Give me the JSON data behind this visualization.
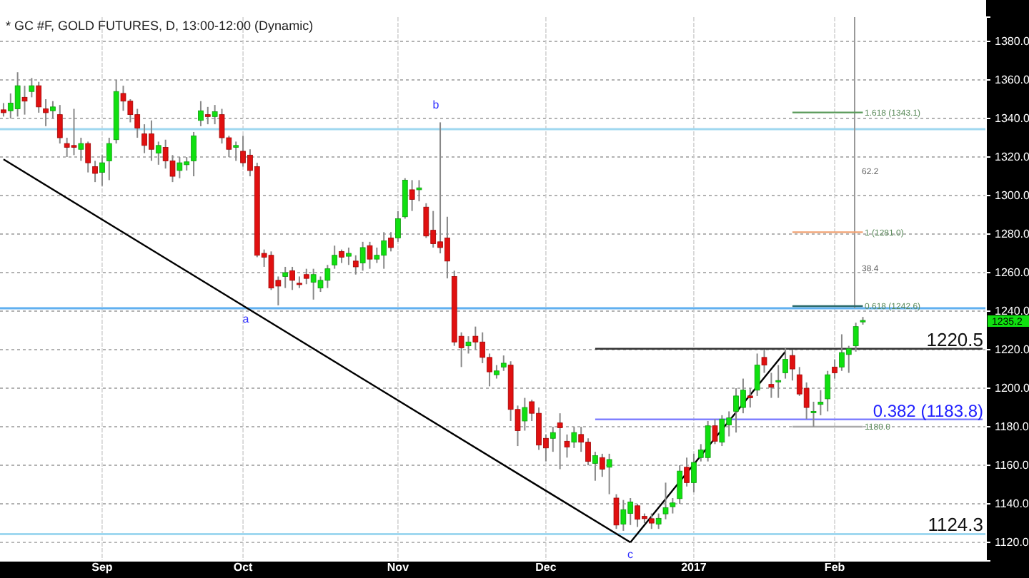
{
  "chart_data": {
    "type": "candlestick",
    "title": "* GC #F, GOLD FUTURES, D, 13:00-12:00 (Dynamic)",
    "categories": [
      null,
      null,
      null,
      null,
      null,
      null,
      null,
      null,
      null,
      null,
      null,
      null,
      null,
      null,
      "Sep",
      null,
      null,
      null,
      null,
      null,
      null,
      null,
      null,
      null,
      null,
      null,
      null,
      null,
      null,
      null,
      null,
      null,
      null,
      null,
      "Oct",
      null,
      null,
      null,
      null,
      null,
      null,
      null,
      null,
      null,
      null,
      null,
      null,
      null,
      null,
      null,
      null,
      null,
      null,
      null,
      null,
      null,
      "Nov",
      null,
      null,
      null,
      null,
      null,
      null,
      null,
      null,
      null,
      null,
      null,
      null,
      null,
      null,
      null,
      null,
      null,
      null,
      null,
      null,
      "Dec",
      null,
      null,
      null,
      null,
      null,
      null,
      null,
      null,
      null,
      null,
      null,
      null,
      null,
      null,
      null,
      null,
      null,
      null,
      null,
      null,
      "2017",
      null,
      null,
      null,
      null,
      null,
      null,
      null,
      null,
      null,
      null,
      null,
      null,
      null,
      null,
      null,
      null,
      null,
      null,
      null,
      "Feb",
      null,
      null,
      null,
      null,
      null,
      null,
      null,
      null,
      null,
      null,
      null,
      null,
      null,
      null,
      null,
      null,
      null,
      null,
      null,
      null,
      null
    ],
    "ohlc": [
      [
        1344.5,
        1348,
        1341,
        1343
      ],
      [
        1344,
        1353,
        1340,
        1348
      ],
      [
        1345,
        1364,
        1341,
        1357
      ],
      [
        1351,
        1357,
        1342,
        1349
      ],
      [
        1354,
        1361,
        1351,
        1357
      ],
      [
        1357,
        1359,
        1343,
        1346
      ],
      [
        1345,
        1350,
        1336,
        1343
      ],
      [
        1344,
        1349,
        1340,
        1346
      ],
      [
        1342,
        1347,
        1327,
        1330
      ],
      [
        1327,
        1330,
        1320,
        1325
      ],
      [
        1326,
        1345,
        1321,
        1325
      ],
      [
        1324,
        1330,
        1318,
        1327
      ],
      [
        1327,
        1328,
        1312,
        1317
      ],
      [
        1315,
        1318,
        1307,
        1311.5
      ],
      [
        1312,
        1321,
        1305,
        1317
      ],
      [
        1318,
        1330,
        1308,
        1327
      ],
      [
        1329,
        1360,
        1327,
        1354
      ],
      [
        1353,
        1357,
        1344,
        1349
      ],
      [
        1349,
        1350,
        1338,
        1342
      ],
      [
        1342,
        1345,
        1330,
        1335
      ],
      [
        1332,
        1337,
        1322,
        1326
      ],
      [
        1332,
        1339,
        1318,
        1324
      ],
      [
        1322,
        1328,
        1316,
        1326
      ],
      [
        1325,
        1329,
        1314,
        1318
      ],
      [
        1318,
        1321,
        1307,
        1310
      ],
      [
        1313,
        1320,
        1309,
        1317
      ],
      [
        1316,
        1320,
        1313,
        1317.5
      ],
      [
        1318,
        1333,
        1310,
        1331
      ],
      [
        1339,
        1349,
        1336,
        1344
      ],
      [
        1342,
        1346,
        1337,
        1341
      ],
      [
        1341,
        1347,
        1337,
        1343.5
      ],
      [
        1342,
        1345,
        1327,
        1330
      ],
      [
        1330,
        1331,
        1320,
        1324
      ],
      [
        1325,
        1328,
        1318,
        1326
      ],
      [
        1323,
        1331,
        1315,
        1317
      ],
      [
        1321,
        1324,
        1310,
        1313
      ],
      [
        1315,
        1317,
        1268,
        1269
      ],
      [
        1270,
        1272,
        1263,
        1268
      ],
      [
        1269,
        1271,
        1251,
        1252
      ],
      [
        1256,
        1258,
        1243,
        1253
      ],
      [
        1258,
        1263,
        1252,
        1260
      ],
      [
        1261,
        1263,
        1251,
        1256
      ],
      [
        1254.5,
        1258,
        1252,
        1254
      ],
      [
        1259,
        1262,
        1254,
        1257
      ],
      [
        1255,
        1262,
        1246,
        1259
      ],
      [
        1252,
        1258,
        1250,
        1256
      ],
      [
        1256,
        1264,
        1252,
        1262
      ],
      [
        1264,
        1274,
        1262,
        1269
      ],
      [
        1271,
        1272,
        1265,
        1268
      ],
      [
        1268.5,
        1273,
        1264,
        1270
      ],
      [
        1266,
        1269,
        1259,
        1263
      ],
      [
        1265,
        1276,
        1261,
        1273
      ],
      [
        1274,
        1276,
        1262,
        1267
      ],
      [
        1267,
        1273,
        1265,
        1269
      ],
      [
        1269,
        1281,
        1262,
        1276.5
      ],
      [
        1278,
        1281,
        1271,
        1273
      ],
      [
        1278,
        1292,
        1276,
        1288
      ],
      [
        1289,
        1309,
        1288,
        1308
      ],
      [
        1303,
        1308,
        1292,
        1298
      ],
      [
        1303,
        1308,
        1297,
        1304
      ],
      [
        1294,
        1296,
        1278,
        1279
      ],
      [
        1282,
        1292,
        1273,
        1275
      ],
      [
        1276,
        1338,
        1270,
        1273
      ],
      [
        1278,
        1289,
        1257,
        1266
      ],
      [
        1258,
        1261,
        1222,
        1224
      ],
      [
        1227,
        1229,
        1211,
        1221
      ],
      [
        1222,
        1227,
        1218,
        1224
      ],
      [
        1227,
        1232,
        1220,
        1224
      ],
      [
        1224,
        1229,
        1213,
        1216
      ],
      [
        1216,
        1218,
        1201,
        1208.5
      ],
      [
        1207,
        1212,
        1205,
        1209
      ],
      [
        1211,
        1217,
        1209,
        1213
      ],
      [
        1212,
        1214,
        1183,
        1189
      ],
      [
        1189,
        1191,
        1170,
        1178
      ],
      [
        1183,
        1195,
        1178,
        1190
      ],
      [
        1193,
        1194,
        1183,
        1187
      ],
      [
        1187,
        1190,
        1168,
        1170.5
      ],
      [
        1174,
        1176,
        1162,
        1169
      ],
      [
        1174,
        1180,
        1167,
        1177
      ],
      [
        1182,
        1187,
        1158,
        1179.5
      ],
      [
        1172.5,
        1176,
        1164,
        1169.5
      ],
      [
        1172,
        1180,
        1169,
        1177
      ],
      [
        1176,
        1180,
        1167,
        1172
      ],
      [
        1172,
        1174,
        1160,
        1162
      ],
      [
        1161,
        1167,
        1152,
        1165
      ],
      [
        1164,
        1166,
        1154,
        1158
      ],
      [
        1159,
        1166,
        1145,
        1163
      ],
      [
        1143,
        1145,
        1127,
        1129
      ],
      [
        1129.5,
        1142,
        1126,
        1137
      ],
      [
        1135,
        1143,
        1129,
        1141
      ],
      [
        1139,
        1140,
        1128,
        1132
      ],
      [
        1133.5,
        1135,
        1130,
        1132.3
      ],
      [
        1132.3,
        1135,
        1127,
        1130
      ],
      [
        1129.5,
        1135,
        1127,
        1132.5
      ],
      [
        1134.8,
        1151,
        1132,
        1138
      ],
      [
        1138.5,
        1143,
        1135,
        1140.5
      ],
      [
        1142.7,
        1160,
        1140,
        1157
      ],
      [
        1159,
        1164,
        1149,
        1151
      ],
      [
        1151,
        1166,
        1146,
        1161.5
      ],
      [
        1164,
        1171,
        1162,
        1168
      ],
      [
        1164,
        1183,
        1162,
        1180.5
      ],
      [
        1180.5,
        1184,
        1171,
        1172.5
      ],
      [
        1172,
        1186,
        1170,
        1184
      ],
      [
        1181,
        1188,
        1175,
        1184.6
      ],
      [
        1188,
        1200,
        1177,
        1196
      ],
      [
        1190,
        1205,
        1187,
        1199
      ],
      [
        1196,
        1200,
        1190,
        1195
      ],
      [
        1199,
        1218,
        1196,
        1212
      ],
      [
        1216,
        1220,
        1208,
        1212
      ],
      [
        1202,
        1208,
        1195,
        1200.5
      ],
      [
        1204,
        1212,
        1195,
        1204
      ],
      [
        1208,
        1221,
        1205,
        1215
      ],
      [
        1217,
        1220,
        1204,
        1210
      ],
      [
        1207,
        1211,
        1196,
        1197
      ],
      [
        1200,
        1203,
        1184,
        1190
      ],
      [
        1188,
        1193,
        1180,
        1188
      ],
      [
        1191.6,
        1199,
        1186,
        1192.8
      ],
      [
        1194.5,
        1209,
        1188,
        1207
      ],
      [
        1211,
        1215,
        1205,
        1208
      ],
      [
        1211,
        1228,
        1209,
        1218.5
      ],
      [
        1217.5,
        1222,
        1208,
        1220.5
      ],
      [
        1222,
        1234,
        1219,
        1232
      ],
      [
        1234.4,
        1237,
        1233,
        1235.2
      ],
      null,
      null,
      null,
      null,
      null,
      null,
      null,
      null,
      null,
      null,
      null,
      null,
      null,
      null,
      null,
      null,
      null
    ],
    "series": [
      {
        "type": "line",
        "color": "#000000",
        "values": [
          1318.8,
          null,
          null,
          null,
          null,
          null,
          null,
          null,
          null,
          null,
          null,
          null,
          null,
          null,
          null,
          null,
          null,
          null,
          null,
          null,
          null,
          null,
          null,
          null,
          null,
          null,
          null,
          null,
          null,
          null,
          null,
          null,
          null,
          null,
          null,
          null,
          null,
          null,
          null,
          null,
          null,
          null,
          null,
          null,
          null,
          null,
          null,
          null,
          null,
          null,
          null,
          null,
          null,
          null,
          null,
          null,
          null,
          null,
          null,
          null,
          null,
          null,
          null,
          null,
          null,
          null,
          null,
          null,
          null,
          null,
          null,
          null,
          null,
          null,
          null,
          null,
          null,
          null,
          null,
          null,
          null,
          null,
          null,
          null,
          null,
          null,
          null,
          null,
          null,
          1120,
          null,
          null,
          null,
          null,
          null,
          null,
          null,
          null,
          null,
          null,
          null,
          null,
          null,
          null,
          null,
          null,
          null,
          null,
          null,
          null,
          null,
          null,
          null,
          null,
          null,
          null,
          null,
          null,
          null,
          null,
          null,
          null,
          null,
          null,
          null,
          null,
          null,
          null,
          null,
          null,
          null,
          null,
          null,
          null,
          null,
          null,
          null,
          null,
          null,
          null
        ]
      },
      {
        "type": "line",
        "color": "#000000",
        "values": [
          null,
          null,
          null,
          null,
          null,
          null,
          null,
          null,
          null,
          null,
          null,
          null,
          null,
          null,
          null,
          null,
          null,
          null,
          null,
          null,
          null,
          null,
          null,
          null,
          null,
          null,
          null,
          null,
          null,
          null,
          null,
          null,
          null,
          null,
          null,
          null,
          null,
          null,
          null,
          null,
          null,
          null,
          null,
          null,
          null,
          null,
          null,
          null,
          null,
          null,
          null,
          null,
          null,
          null,
          null,
          null,
          null,
          null,
          null,
          null,
          null,
          null,
          null,
          null,
          null,
          null,
          null,
          null,
          null,
          null,
          null,
          null,
          null,
          null,
          null,
          null,
          null,
          null,
          null,
          null,
          null,
          null,
          null,
          null,
          null,
          null,
          null,
          null,
          null,
          1120,
          null,
          null,
          null,
          null,
          null,
          null,
          null,
          null,
          null,
          null,
          null,
          null,
          null,
          null,
          null,
          null,
          null,
          null,
          null,
          null,
          null,
          1219,
          null,
          null,
          null,
          null,
          null,
          null,
          null,
          null,
          null,
          null,
          null,
          null,
          null,
          null,
          null,
          null,
          null,
          null,
          null,
          null,
          null,
          null,
          null,
          null,
          null,
          null,
          null,
          null
        ]
      },
      {
        "type": "line",
        "color": "#5a9a5a",
        "values": [
          null,
          null,
          null,
          null,
          null,
          null,
          null,
          null,
          null,
          null,
          null,
          null,
          null,
          null,
          null,
          null,
          null,
          null,
          null,
          null,
          null,
          null,
          null,
          null,
          null,
          null,
          null,
          null,
          null,
          null,
          null,
          null,
          null,
          null,
          null,
          null,
          null,
          null,
          null,
          null,
          null,
          null,
          null,
          null,
          null,
          null,
          null,
          null,
          null,
          null,
          null,
          null,
          null,
          null,
          null,
          null,
          null,
          null,
          null,
          null,
          null,
          null,
          null,
          null,
          null,
          null,
          null,
          null,
          null,
          null,
          null,
          null,
          null,
          null,
          null,
          null,
          null,
          null,
          null,
          null,
          null,
          null,
          null,
          null,
          null,
          null,
          null,
          null,
          null,
          null,
          null,
          null,
          null,
          null,
          null,
          null,
          null,
          null,
          null,
          null,
          null,
          null,
          null,
          null,
          null,
          null,
          null,
          null,
          null,
          null,
          null,
          null,
          1343.1,
          null,
          null,
          null,
          null,
          null,
          null,
          null,
          null,
          null,
          1343.1,
          null,
          null,
          null,
          null,
          null,
          null,
          null,
          null,
          null,
          null,
          null,
          null,
          null,
          null,
          null,
          null,
          null
        ]
      },
      {
        "type": "line",
        "color": "#f0a070",
        "values": [
          null,
          null,
          null,
          null,
          null,
          null,
          null,
          null,
          null,
          null,
          null,
          null,
          null,
          null,
          null,
          null,
          null,
          null,
          null,
          null,
          null,
          null,
          null,
          null,
          null,
          null,
          null,
          null,
          null,
          null,
          null,
          null,
          null,
          null,
          null,
          null,
          null,
          null,
          null,
          null,
          null,
          null,
          null,
          null,
          null,
          null,
          null,
          null,
          null,
          null,
          null,
          null,
          null,
          null,
          null,
          null,
          null,
          null,
          null,
          null,
          null,
          null,
          null,
          null,
          null,
          null,
          null,
          null,
          null,
          null,
          null,
          null,
          null,
          null,
          null,
          null,
          null,
          null,
          null,
          null,
          null,
          null,
          null,
          null,
          null,
          null,
          null,
          null,
          null,
          null,
          null,
          null,
          null,
          null,
          null,
          null,
          null,
          null,
          null,
          null,
          null,
          null,
          null,
          null,
          null,
          null,
          null,
          null,
          null,
          null,
          null,
          null,
          1281,
          null,
          null,
          null,
          null,
          null,
          null,
          null,
          null,
          null,
          1281,
          null,
          null,
          null,
          null,
          null,
          null,
          null,
          null,
          null,
          null,
          null,
          null,
          null,
          null,
          null,
          null,
          null
        ]
      },
      {
        "type": "line",
        "color": "#2a6a6a",
        "values": [
          null,
          null,
          null,
          null,
          null,
          null,
          null,
          null,
          null,
          null,
          null,
          null,
          null,
          null,
          null,
          null,
          null,
          null,
          null,
          null,
          null,
          null,
          null,
          null,
          null,
          null,
          null,
          null,
          null,
          null,
          null,
          null,
          null,
          null,
          null,
          null,
          null,
          null,
          null,
          null,
          null,
          null,
          null,
          null,
          null,
          null,
          null,
          null,
          null,
          null,
          null,
          null,
          null,
          null,
          null,
          null,
          null,
          null,
          null,
          null,
          null,
          null,
          null,
          null,
          null,
          null,
          null,
          null,
          null,
          null,
          null,
          null,
          null,
          null,
          null,
          null,
          null,
          null,
          null,
          null,
          null,
          null,
          null,
          null,
          null,
          null,
          null,
          null,
          null,
          null,
          null,
          null,
          null,
          null,
          null,
          null,
          null,
          null,
          null,
          null,
          null,
          null,
          null,
          null,
          null,
          null,
          null,
          null,
          null,
          null,
          null,
          null,
          1242.6,
          null,
          null,
          null,
          null,
          null,
          null,
          null,
          null,
          null,
          1242.6,
          null,
          null,
          null,
          null,
          null,
          null,
          null,
          null,
          null,
          null,
          null,
          null,
          null,
          null,
          null,
          null,
          null
        ]
      },
      {
        "type": "line",
        "color": "#aaaaaa",
        "values": [
          null,
          null,
          null,
          null,
          null,
          null,
          null,
          null,
          null,
          null,
          null,
          null,
          null,
          null,
          null,
          null,
          null,
          null,
          null,
          null,
          null,
          null,
          null,
          null,
          null,
          null,
          null,
          null,
          null,
          null,
          null,
          null,
          null,
          null,
          null,
          null,
          null,
          null,
          null,
          null,
          null,
          null,
          null,
          null,
          null,
          null,
          null,
          null,
          null,
          null,
          null,
          null,
          null,
          null,
          null,
          null,
          null,
          null,
          null,
          null,
          null,
          null,
          null,
          null,
          null,
          null,
          null,
          null,
          null,
          null,
          null,
          null,
          null,
          null,
          null,
          null,
          null,
          null,
          null,
          null,
          null,
          null,
          null,
          null,
          null,
          null,
          null,
          null,
          null,
          null,
          null,
          null,
          null,
          null,
          null,
          null,
          null,
          null,
          null,
          null,
          null,
          null,
          null,
          null,
          null,
          null,
          null,
          null,
          null,
          null,
          null,
          null,
          1180,
          null,
          null,
          null,
          null,
          null,
          null,
          null,
          null,
          null,
          1180,
          null,
          null,
          null,
          null,
          null,
          null,
          null,
          null,
          null,
          null,
          null,
          null,
          null,
          null,
          null,
          null,
          null
        ]
      },
      {
        "type": "line",
        "color": "#333333",
        "values": [
          null,
          null,
          null,
          null,
          null,
          null,
          null,
          null,
          null,
          null,
          null,
          null,
          null,
          null,
          null,
          null,
          null,
          null,
          null,
          null,
          null,
          null,
          null,
          null,
          null,
          null,
          null,
          null,
          null,
          null,
          null,
          null,
          null,
          null,
          null,
          null,
          null,
          null,
          null,
          null,
          null,
          null,
          null,
          null,
          null,
          null,
          null,
          null,
          null,
          null,
          null,
          null,
          null,
          null,
          null,
          null,
          null,
          null,
          null,
          null,
          null,
          null,
          null,
          null,
          null,
          null,
          null,
          null,
          null,
          null,
          null,
          null,
          null,
          null,
          null,
          null,
          null,
          null,
          null,
          null,
          null,
          null,
          null,
          null,
          1220.5,
          null,
          null,
          null,
          null,
          null,
          null,
          null,
          null,
          null,
          null,
          null,
          null,
          null,
          null,
          null,
          null,
          null,
          null,
          null,
          null,
          null,
          null,
          null,
          null,
          null,
          null,
          null,
          null,
          null,
          null,
          null,
          null,
          null,
          null,
          null,
          null,
          null,
          null,
          null,
          null,
          null,
          null,
          null,
          null,
          null,
          null,
          null,
          null,
          null,
          null,
          null,
          null,
          null,
          null,
          1220.5
        ]
      },
      {
        "type": "line",
        "color": "#8080ff",
        "values": [
          null,
          null,
          null,
          null,
          null,
          null,
          null,
          null,
          null,
          null,
          null,
          null,
          null,
          null,
          null,
          null,
          null,
          null,
          null,
          null,
          null,
          null,
          null,
          null,
          null,
          null,
          null,
          null,
          null,
          null,
          null,
          null,
          null,
          null,
          null,
          null,
          null,
          null,
          null,
          null,
          null,
          null,
          null,
          null,
          null,
          null,
          null,
          null,
          null,
          null,
          null,
          null,
          null,
          null,
          null,
          null,
          null,
          null,
          null,
          null,
          null,
          null,
          null,
          null,
          null,
          null,
          null,
          null,
          null,
          null,
          null,
          null,
          null,
          null,
          null,
          null,
          null,
          null,
          null,
          null,
          null,
          null,
          null,
          null,
          1183.8,
          null,
          null,
          null,
          null,
          null,
          null,
          null,
          null,
          null,
          null,
          null,
          null,
          null,
          null,
          null,
          null,
          null,
          null,
          null,
          null,
          null,
          null,
          null,
          null,
          null,
          null,
          null,
          null,
          null,
          null,
          null,
          null,
          null,
          null,
          null,
          null,
          null,
          null,
          null,
          null,
          null,
          null,
          null,
          null,
          null,
          null,
          null,
          null,
          null,
          null,
          null,
          null,
          null,
          null,
          1183.8
        ]
      }
    ],
    "ref_lines": [
      {
        "axis": "y",
        "value": 1334.5,
        "color": "#a0d8f0"
      },
      {
        "axis": "y",
        "value": 1241.5,
        "color": "#60b0f0"
      },
      {
        "axis": "y",
        "value": 1124.3,
        "color": "#a0d8f0"
      }
    ],
    "annotations": [
      "a",
      "b",
      "c",
      "1.618 (1343.1)",
      "62.2",
      "1 (1281.0)",
      "38.4",
      {
        "text": "0.618 (1242.6)",
        "y": 1242.6
      },
      "1180.0",
      {
        "text": "1220.5",
        "y": 1220.5
      },
      {
        "text": "0.382 (1183.8)",
        "y": 1183.8
      },
      {
        "text": "1124.3",
        "y": 1124.3
      },
      "1235.2"
    ],
    "ylim": [
      1110.4,
      1392.6
    ],
    "yticks": [
      {
        "value": 1120,
        "label": "1120.0"
      },
      {
        "value": 1140,
        "label": "1140.0"
      },
      {
        "value": 1160,
        "label": "1160.0"
      },
      {
        "value": 1180,
        "label": "1180.0"
      },
      {
        "value": 1200,
        "label": "1200.0"
      },
      {
        "value": 1220,
        "label": "1220.0"
      },
      {
        "value": 1240,
        "label": "1240.0"
      },
      {
        "value": 1260,
        "label": "1260.0"
      },
      {
        "value": 1280,
        "label": "1280.0"
      },
      {
        "value": 1300,
        "label": "1300.0"
      },
      {
        "value": 1320,
        "label": "1320.0"
      },
      {
        "value": 1340,
        "label": "1340.0"
      },
      {
        "value": 1360,
        "label": "1360.0"
      },
      {
        "value": 1380,
        "label": "1380.0"
      }
    ],
    "grid": true
  }
}
